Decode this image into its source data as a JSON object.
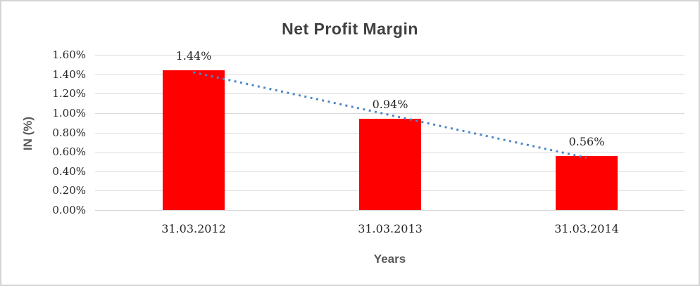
{
  "chart_data": {
    "type": "bar",
    "title": "Net Profit Margin",
    "xlabel": "Years",
    "ylabel": "IN (%)",
    "categories": [
      "31.03.2012",
      "31.03.2013",
      "31.03.2014"
    ],
    "values": [
      1.44,
      0.94,
      0.56
    ],
    "data_labels": [
      "1.44%",
      "0.94%",
      "0.56%"
    ],
    "ytick_values": [
      0.0,
      0.2,
      0.4,
      0.6,
      0.8,
      1.0,
      1.2,
      1.4,
      1.6
    ],
    "ytick_labels": [
      "0.00%",
      "0.20%",
      "0.40%",
      "0.60%",
      "0.80%",
      "1.00%",
      "1.20%",
      "1.40%",
      "1.60%"
    ],
    "ylim": [
      0,
      1.6
    ],
    "grid": true,
    "legend": false,
    "bar_color": "#ff0000",
    "trendline": {
      "type": "linear",
      "style": "dotted",
      "color": "#4e86c8"
    },
    "title_color": "#404040",
    "axis_title_color": "#595959",
    "gridline_color": "#d9d9d9"
  }
}
